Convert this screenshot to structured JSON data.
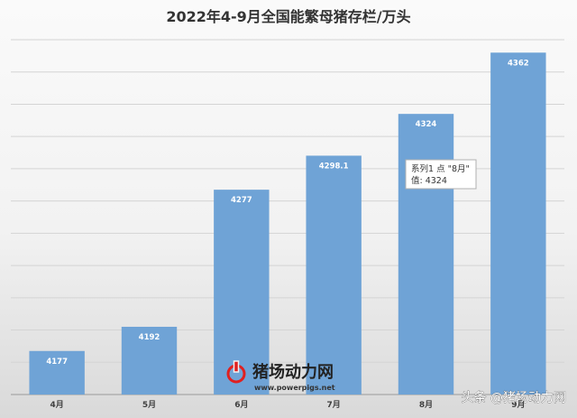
{
  "chart_data": {
    "type": "bar",
    "title": "2022年4-9月全国能繁母猪存栏/万头",
    "categories": [
      "4月",
      "5月",
      "6月",
      "7月",
      "8月",
      "9月"
    ],
    "series": [
      {
        "name": "系列1",
        "values": [
          4177,
          4192,
          4277,
          4298.1,
          4324,
          4362
        ]
      }
    ],
    "data_labels": [
      "4177",
      "4192",
      "4277",
      "4298.1",
      "4324",
      "4362"
    ],
    "ylim": [
      4150,
      4370
    ],
    "grid": true,
    "bar_color": "#6fa3d6",
    "tooltip": {
      "line1": "系列1 点 \"8月\"",
      "line2": "值: 4324"
    }
  },
  "watermark": {
    "brand": "猪场动力网",
    "url": "www.powerpigs.net",
    "icon": "power-icon",
    "icon_color": "#e02020"
  },
  "corner_watermark": {
    "text": "头条 @猪场动力网"
  }
}
